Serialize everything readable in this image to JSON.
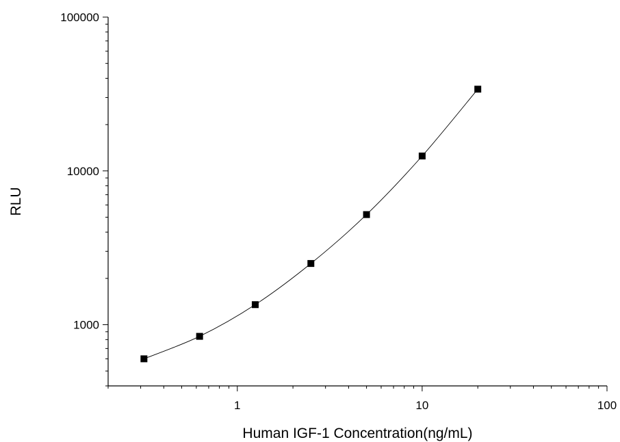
{
  "chart_data": {
    "type": "scatter",
    "title": "",
    "xlabel": "Human IGF-1 Concentration(ng/mL)",
    "ylabel": "RLU",
    "xscale": "log",
    "yscale": "log",
    "xlim": [
      0.2,
      100
    ],
    "ylim": [
      400,
      100000
    ],
    "x_ticks": [
      {
        "value": 1,
        "label": "1"
      },
      {
        "value": 10,
        "label": "10"
      },
      {
        "value": 100,
        "label": "100"
      }
    ],
    "y_ticks": [
      {
        "value": 1000,
        "label": "1000"
      },
      {
        "value": 10000,
        "label": "10000"
      },
      {
        "value": 100000,
        "label": "100000"
      }
    ],
    "grid": false,
    "legend": "none",
    "series": [
      {
        "marker": "square",
        "fit_line": "smooth curve",
        "color": "#000000",
        "x": [
          0.3125,
          0.625,
          1.25,
          2.5,
          5,
          10,
          20
        ],
        "y": [
          600,
          840,
          1350,
          2500,
          5200,
          12500,
          34000
        ]
      }
    ]
  }
}
